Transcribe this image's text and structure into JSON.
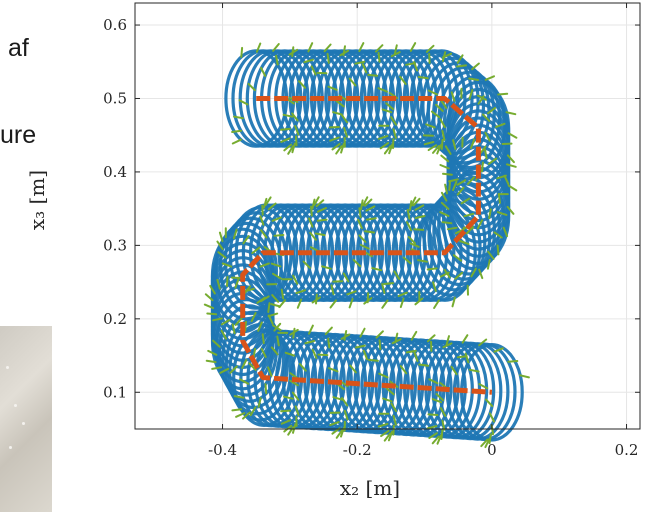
{
  "background": {
    "text_fragments": [
      "af",
      "ure"
    ]
  },
  "colors": {
    "orbit": "#1f77b4",
    "center_path": "#d95319",
    "vectors": "#77ac30",
    "axes": "#262626",
    "grid": "#e6e6e6"
  },
  "chart_data": {
    "type": "line",
    "title": "",
    "xlabel": "x₂ [m]",
    "ylabel": "x₃ [m]",
    "xlim": [
      -0.53,
      0.22
    ],
    "ylim": [
      0.05,
      0.63
    ],
    "x_ticks": [
      -0.4,
      -0.2,
      0,
      0.2
    ],
    "x_tick_labels": [
      "-0.4",
      "-0.2",
      "0",
      "0.2"
    ],
    "y_ticks": [
      0.1,
      0.2,
      0.3,
      0.4,
      0.5,
      0.6
    ],
    "y_tick_labels": [
      "0.1",
      "0.2",
      "0.3",
      "0.4",
      "0.5",
      "0.6"
    ],
    "grid": true,
    "series": [
      {
        "kind": "center_path",
        "points": [
          [
            -0.35,
            0.5
          ],
          [
            -0.07,
            0.5
          ],
          [
            -0.02,
            0.46
          ],
          [
            -0.02,
            0.34
          ],
          [
            -0.07,
            0.29
          ],
          [
            -0.34,
            0.29
          ],
          [
            -0.37,
            0.26
          ],
          [
            -0.37,
            0.17
          ],
          [
            -0.34,
            0.12
          ],
          [
            0.0,
            0.1
          ]
        ]
      },
      {
        "kind": "orbit_tube",
        "radius_x": 0.045,
        "radius_y": 0.065,
        "count": 130
      }
    ]
  }
}
